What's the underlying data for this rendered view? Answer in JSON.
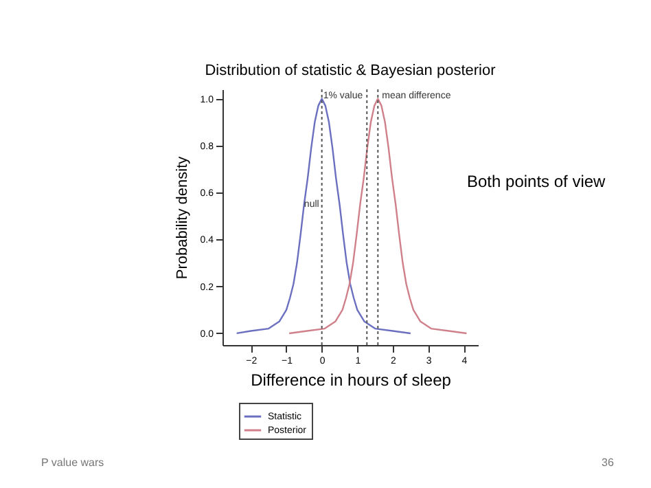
{
  "chart_data": {
    "type": "line",
    "title": "Distribution of statistic & Bayesian posterior",
    "xlabel": "Difference in hours of sleep",
    "ylabel": "Probability density",
    "series": [
      {
        "name": "Statistic",
        "color": "#6a6fc0",
        "x": [
          -2.4,
          -2,
          -1.5,
          -1.2,
          -1,
          -0.9,
          -0.8,
          -0.7,
          -0.6,
          -0.5,
          -0.4,
          -0.3,
          -0.2,
          -0.1,
          0,
          0.1,
          0.2,
          0.3,
          0.4,
          0.5,
          0.6,
          0.7,
          0.8,
          0.9,
          1,
          1.2,
          1.5,
          2,
          2.5
        ],
        "values": [
          0,
          0.01,
          0.02,
          0.05,
          0.1,
          0.15,
          0.21,
          0.3,
          0.42,
          0.55,
          0.66,
          0.79,
          0.9,
          0.97,
          1,
          0.97,
          0.9,
          0.79,
          0.66,
          0.55,
          0.42,
          0.3,
          0.21,
          0.15,
          0.1,
          0.05,
          0.02,
          0.01,
          0
        ]
      },
      {
        "name": "Posterior",
        "color": "#d0808a",
        "x": [
          -0.92,
          -0.42,
          0.08,
          0.38,
          0.58,
          0.68,
          0.78,
          0.88,
          0.98,
          1.08,
          1.18,
          1.28,
          1.38,
          1.48,
          1.58,
          1.68,
          1.78,
          1.88,
          1.98,
          2.08,
          2.18,
          2.28,
          2.38,
          2.48,
          2.58,
          2.78,
          3.08,
          3.58,
          4.08
        ],
        "values": [
          0,
          0.01,
          0.02,
          0.05,
          0.1,
          0.15,
          0.21,
          0.3,
          0.42,
          0.55,
          0.66,
          0.79,
          0.9,
          0.97,
          1,
          0.97,
          0.9,
          0.79,
          0.66,
          0.55,
          0.42,
          0.3,
          0.21,
          0.15,
          0.1,
          0.05,
          0.02,
          0.01,
          0
        ]
      }
    ],
    "xlim": [
      -2.8,
      4.4
    ],
    "xticks": [
      -2,
      -1,
      0,
      1,
      2,
      3,
      4
    ],
    "ylim": [
      -0.05,
      1.04
    ],
    "yticks": [
      {
        "value": 0,
        "label": "0.0"
      },
      0.2,
      0.4,
      0.6,
      0.8,
      {
        "value": 1,
        "label": "1.0"
      }
    ],
    "ref_lines": [
      {
        "axis": "x",
        "value": 0,
        "label": "null",
        "color": "#555555",
        "line_style": "dotted"
      },
      {
        "axis": "x",
        "value": 1.27,
        "label": "1% value",
        "color": "#555555",
        "line_style": "dotted"
      },
      {
        "axis": "x",
        "value": 1.58,
        "label": "mean difference",
        "color": "#555555",
        "line_style": "dotted"
      }
    ],
    "legend": "bottom left",
    "grid": false,
    "marker": "none",
    "line_style": "solid",
    "annotations": [
      "Both points of view",
      "P value wars",
      "36"
    ]
  }
}
